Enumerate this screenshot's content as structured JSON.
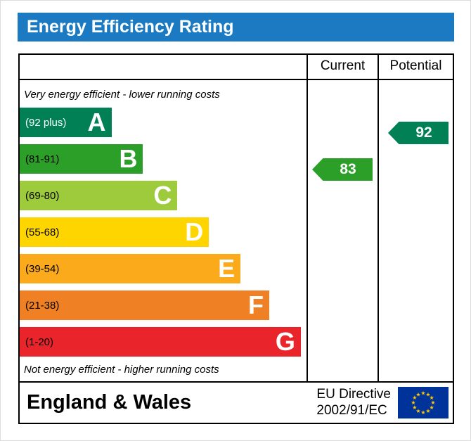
{
  "title": "Energy Efficiency Rating",
  "header": {
    "current": "Current",
    "potential": "Potential"
  },
  "captions": {
    "top": "Very energy efficient - lower running costs",
    "bottom": "Not energy efficient - higher running costs"
  },
  "chart_data": {
    "type": "bar",
    "title": "Energy Efficiency Rating",
    "description": "EPC energy efficiency band chart with current and potential ratings",
    "bands": [
      {
        "letter": "A",
        "range": "(92 plus)",
        "min": 92,
        "max": 100,
        "color": "#008054",
        "label_color": "#ffffff",
        "width_pct": 32
      },
      {
        "letter": "B",
        "range": "(81-91)",
        "min": 81,
        "max": 91,
        "color": "#2c9f29",
        "label_color": "#000000",
        "width_pct": 43
      },
      {
        "letter": "C",
        "range": "(69-80)",
        "min": 69,
        "max": 80,
        "color": "#9dcb3c",
        "label_color": "#000000",
        "width_pct": 55
      },
      {
        "letter": "D",
        "range": "(55-68)",
        "min": 55,
        "max": 68,
        "color": "#ffd500",
        "label_color": "#000000",
        "width_pct": 66
      },
      {
        "letter": "E",
        "range": "(39-54)",
        "min": 39,
        "max": 54,
        "color": "#fbaa1c",
        "label_color": "#000000",
        "width_pct": 77
      },
      {
        "letter": "F",
        "range": "(21-38)",
        "min": 21,
        "max": 38,
        "color": "#ef8023",
        "label_color": "#000000",
        "width_pct": 87
      },
      {
        "letter": "G",
        "range": "(1-20)",
        "min": 1,
        "max": 20,
        "color": "#e9242a",
        "label_color": "#000000",
        "width_pct": 98
      }
    ],
    "ratings": {
      "current": {
        "value": 83,
        "band": "B",
        "color": "#2c9f29"
      },
      "potential": {
        "value": 92,
        "band": "A",
        "color": "#008054"
      }
    }
  },
  "footer": {
    "region": "England & Wales",
    "directive_line1": "EU Directive",
    "directive_line2": "2002/91/EC",
    "flag": {
      "bg": "#003399",
      "star_color": "#ffcc00"
    }
  },
  "colors": {
    "title_bg": "#1b7ac1",
    "title_text": "#ffffff",
    "border": "#000000",
    "background": "#ffffff"
  }
}
